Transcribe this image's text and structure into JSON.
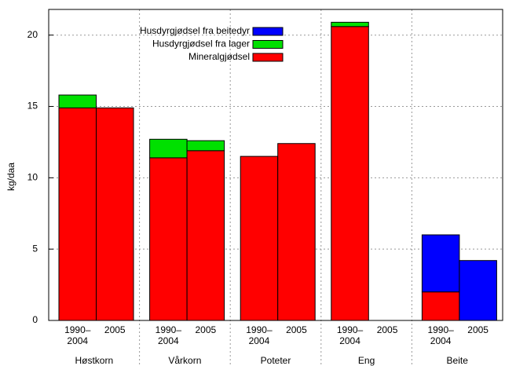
{
  "chart_data": {
    "type": "stacked-bar",
    "ylabel": "kg/daa",
    "groups": [
      "Høstkorn",
      "Vårkorn",
      "Poteter",
      "Eng",
      "Beite"
    ],
    "categories": [
      "1990–\n2004",
      "2005",
      "1990–\n2004",
      "2005",
      "1990–\n2004",
      "2005",
      "1990–\n2004",
      "2005",
      "1990–\n2004",
      "2005"
    ],
    "series": [
      {
        "name": "Mineralgjødsel",
        "color": "#ff0000",
        "values": [
          14.9,
          14.9,
          11.4,
          11.9,
          11.5,
          12.4,
          20.6,
          0,
          2.0,
          0
        ]
      },
      {
        "name": "Husdyrgjødsel fra lager",
        "color": "#00e000",
        "values": [
          0.9,
          0,
          1.3,
          0.7,
          0,
          0,
          0.3,
          0,
          0,
          0
        ]
      },
      {
        "name": "Husdyrgjødsel fra beitedyr",
        "color": "#0000ff",
        "values": [
          0,
          0,
          0,
          0,
          0,
          0,
          0,
          0,
          4.0,
          4.2
        ]
      }
    ],
    "ylim": [
      0,
      21.8
    ],
    "yticks": [
      0,
      5,
      10,
      15,
      20
    ],
    "grid": true
  }
}
